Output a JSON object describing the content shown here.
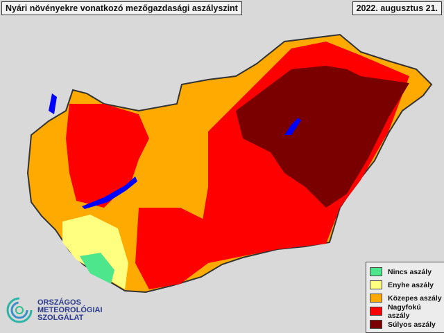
{
  "title": "Nyári növényekre vonatkozó mezőgazdasági aszályszint",
  "date": "2022. augusztus 21.",
  "legend": [
    {
      "label": "Nincs aszály",
      "color": "#4de68c"
    },
    {
      "label": "Enyhe aszály",
      "color": "#ffff80"
    },
    {
      "label": "Közepes aszály",
      "color": "#ffaa00"
    },
    {
      "label": "Nagyfokú aszály",
      "color": "#ff0000"
    },
    {
      "label": "Súlyos aszály",
      "color": "#7a0000"
    }
  ],
  "logo": {
    "line1": "ORSZÁGOS",
    "line2": "METEOROLÓGIAI",
    "line3": "SZOLGÁLAT"
  },
  "colors": {
    "background": "#d9d9d9",
    "water": "#0000ff",
    "border": "#333333"
  }
}
